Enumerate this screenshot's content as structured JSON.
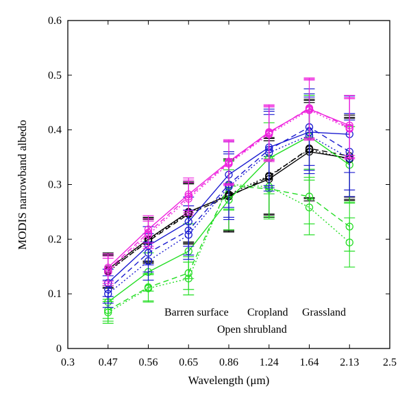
{
  "chart_data": {
    "type": "line",
    "title": "",
    "xlabel": "Wavelength (μm)",
    "ylabel": "MODIS narrowband albedo",
    "xlim": [
      0.3,
      2.5
    ],
    "ylim": [
      0,
      0.6
    ],
    "x_tick_labels": [
      "0.3",
      "0.47",
      "0.56",
      "0.65",
      "0.86",
      "1.24",
      "1.64",
      "2.13",
      "2.5"
    ],
    "y_tick_labels": [
      "0",
      "0.1",
      "0.2",
      "0.3",
      "0.4",
      "0.5",
      "0.6"
    ],
    "x_scale": "band-index",
    "grid": false,
    "legend": {
      "placement": "lower-right",
      "entries": [
        {
          "label": "Barren surface",
          "color": "#000000"
        },
        {
          "label": "Cropland",
          "color": "#22dd22"
        },
        {
          "label": "Grassland",
          "color": "#1a1ad0"
        },
        {
          "label": "Open shrubland",
          "color": "#ee22dd"
        }
      ]
    },
    "x": [
      0.47,
      0.56,
      0.65,
      0.86,
      1.24,
      1.64,
      2.13
    ],
    "series": [
      {
        "group": "Barren surface",
        "style": "solid",
        "color": "#000000",
        "values": [
          0.145,
          0.2,
          0.25,
          0.28,
          0.31,
          0.36,
          0.348
        ],
        "error": [
          0.03,
          0.04,
          0.055,
          0.065,
          0.07,
          0.09,
          0.075
        ]
      },
      {
        "group": "Barren surface",
        "style": "dashed",
        "color": "#000000",
        "values": [
          0.142,
          0.196,
          0.246,
          0.278,
          0.314,
          0.366,
          0.352
        ],
        "error": [
          0.03,
          0.04,
          0.055,
          0.065,
          0.07,
          0.09,
          0.075
        ]
      },
      {
        "group": "Barren surface",
        "style": "dotted",
        "color": "#000000",
        "values": [
          0.14,
          0.198,
          0.248,
          0.282,
          0.316,
          0.364,
          0.346
        ],
        "error": [
          0.03,
          0.04,
          0.055,
          0.065,
          0.07,
          0.09,
          0.075
        ]
      },
      {
        "group": "Cropland",
        "style": "solid",
        "color": "#22dd22",
        "values": [
          0.085,
          0.14,
          0.178,
          0.272,
          0.348,
          0.388,
          0.336
        ],
        "error": [
          0.03,
          0.035,
          0.05,
          0.055,
          0.065,
          0.075,
          0.07
        ]
      },
      {
        "group": "Cropland",
        "style": "dashed",
        "color": "#22dd22",
        "values": [
          0.07,
          0.112,
          0.138,
          0.298,
          0.292,
          0.278,
          0.223
        ],
        "error": [
          0.02,
          0.025,
          0.03,
          0.045,
          0.055,
          0.05,
          0.045
        ]
      },
      {
        "group": "Cropland",
        "style": "dotted",
        "color": "#22dd22",
        "values": [
          0.066,
          0.11,
          0.128,
          0.3,
          0.296,
          0.258,
          0.194
        ],
        "error": [
          0.02,
          0.025,
          0.03,
          0.045,
          0.055,
          0.05,
          0.045
        ]
      },
      {
        "group": "Grassland",
        "style": "solid",
        "color": "#1a1ad0",
        "values": [
          0.12,
          0.188,
          0.232,
          0.318,
          0.368,
          0.396,
          0.392
        ],
        "error": [
          0.025,
          0.035,
          0.045,
          0.06,
          0.07,
          0.07,
          0.07
        ]
      },
      {
        "group": "Grassland",
        "style": "dashed",
        "color": "#1a1ad0",
        "values": [
          0.108,
          0.175,
          0.216,
          0.3,
          0.364,
          0.405,
          0.36
        ],
        "error": [
          0.025,
          0.035,
          0.045,
          0.06,
          0.07,
          0.07,
          0.07
        ]
      },
      {
        "group": "Grassland",
        "style": "dotted",
        "color": "#1a1ad0",
        "values": [
          0.1,
          0.16,
          0.208,
          0.296,
          0.358,
          0.39,
          0.348
        ],
        "error": [
          0.025,
          0.035,
          0.045,
          0.06,
          0.07,
          0.07,
          0.07
        ]
      },
      {
        "group": "Open shrubland",
        "style": "solid",
        "color": "#ee22dd",
        "values": [
          0.148,
          0.218,
          0.282,
          0.342,
          0.396,
          0.438,
          0.408
        ],
        "error": [
          0.025,
          0.025,
          0.03,
          0.04,
          0.05,
          0.055,
          0.055
        ]
      },
      {
        "group": "Open shrubland",
        "style": "dashed",
        "color": "#ee22dd",
        "values": [
          0.144,
          0.212,
          0.278,
          0.34,
          0.394,
          0.44,
          0.404
        ],
        "error": [
          0.025,
          0.025,
          0.03,
          0.04,
          0.05,
          0.055,
          0.055
        ]
      },
      {
        "group": "Open shrubland",
        "style": "dotted",
        "color": "#ee22dd",
        "values": [
          0.14,
          0.208,
          0.274,
          0.338,
          0.392,
          0.436,
          0.402
        ],
        "error": [
          0.025,
          0.025,
          0.03,
          0.04,
          0.05,
          0.055,
          0.055
        ]
      }
    ]
  }
}
